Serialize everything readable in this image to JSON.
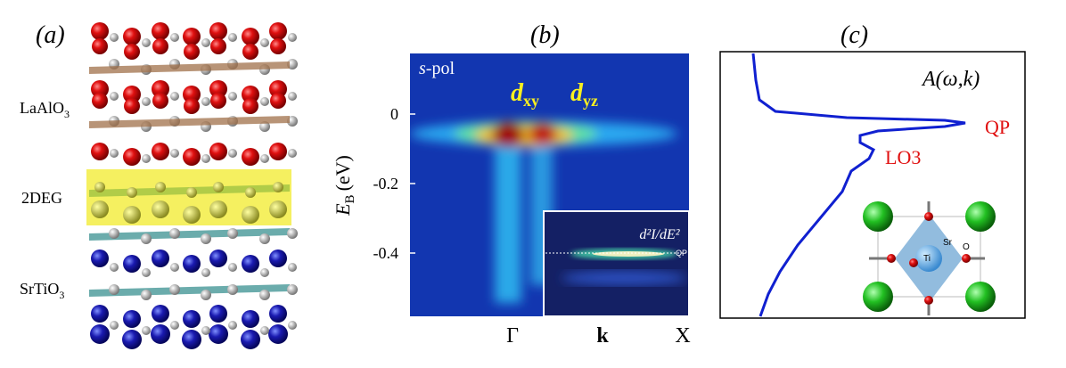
{
  "panel_a": {
    "label": "(a)",
    "layers": [
      {
        "name": "LaAlO",
        "sub": "3"
      },
      {
        "name": "2DEG"
      },
      {
        "name": "SrTiO",
        "sub": "3"
      }
    ]
  },
  "panel_b": {
    "label": "(b)",
    "y_axis": {
      "symbol": "E",
      "sub": "B",
      "unit": "(eV)"
    },
    "yticks": [
      0,
      -0.2,
      -0.4
    ],
    "polarization": {
      "symbol": "s",
      "text": "-pol"
    },
    "bands": [
      {
        "symbol": "d",
        "sub": "xy"
      },
      {
        "symbol": "d",
        "sub": "yz"
      }
    ],
    "inset": {
      "title": "d²I/dE²",
      "marker": "QP"
    },
    "x_labels": [
      "Γ",
      "k",
      "X"
    ]
  },
  "panel_c": {
    "label": "(c)",
    "title": "A(ω,k)",
    "peaks": [
      "QP",
      "LO3"
    ],
    "atoms": [
      "Sr",
      "Ti",
      "O"
    ]
  }
}
